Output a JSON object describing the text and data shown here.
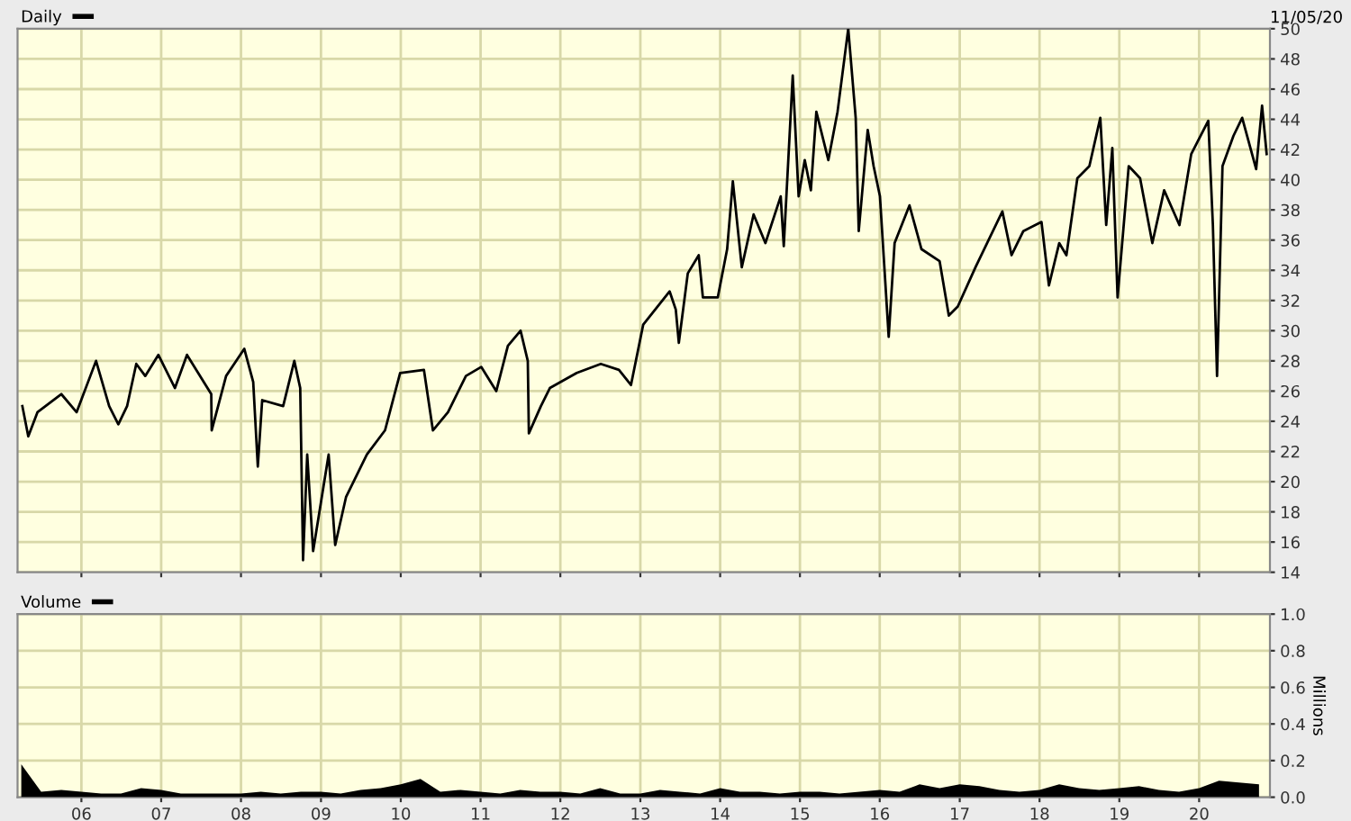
{
  "chart_data": [
    {
      "type": "line",
      "annotations": [
        "11/05/20"
      ],
      "legend": "top left",
      "grid": true,
      "tick_labels": "y",
      "marker": "none",
      "line_style": "solid",
      "xlim": [
        "2005-03-15",
        "2020-11-20"
      ],
      "xticks": [
        {
          "value": "2006",
          "label": null
        },
        {
          "value": "2007",
          "label": null
        },
        {
          "value": "2008",
          "label": null
        },
        {
          "value": "2009",
          "label": null
        },
        {
          "value": "2010",
          "label": null
        },
        {
          "value": "2011",
          "label": null
        },
        {
          "value": "2012",
          "label": null
        },
        {
          "value": "2013",
          "label": null
        },
        {
          "value": "2014",
          "label": null
        },
        {
          "value": "2015",
          "label": null
        },
        {
          "value": "2016",
          "label": null
        },
        {
          "value": "2017",
          "label": null
        },
        {
          "value": "2018",
          "label": null
        },
        {
          "value": "2019",
          "label": null
        },
        {
          "value": "2020",
          "label": null
        }
      ],
      "ylim": [
        14,
        50
      ],
      "yticks": [
        14,
        16,
        18,
        20,
        22,
        24,
        26,
        28,
        30,
        32,
        34,
        36,
        38,
        40,
        42,
        44,
        46,
        48,
        50
      ],
      "series": [
        {
          "name": "Daily",
          "color": "#000000",
          "x": [
            "2005-04-06",
            "2005-05-03",
            "2005-06-14",
            "2005-10-01",
            "2005-12-10",
            "2006-03-09",
            "2006-05-08",
            "2006-06-19",
            "2006-07-29",
            "2006-09-09",
            "2006-10-20",
            "2006-12-19",
            "2007-03-05",
            "2007-04-29",
            "2007-08-18",
            "2007-08-20",
            "2007-10-25",
            "2008-01-16",
            "2008-02-26",
            "2008-03-18",
            "2008-04-07",
            "2008-07-12",
            "2008-09-01",
            "2008-09-28",
            "2008-10-11",
            "2008-10-30",
            "2008-11-26",
            "2009-02-05",
            "2009-03-07",
            "2009-04-26",
            "2009-07-30",
            "2009-10-21",
            "2009-12-29",
            "2010-04-17",
            "2010-05-28",
            "2010-08-05",
            "2010-10-26",
            "2011-01-04",
            "2011-03-14",
            "2011-05-06",
            "2011-07-03",
            "2011-08-05",
            "2011-08-10",
            "2011-10-04",
            "2011-11-14",
            "2012-03-16",
            "2012-07-04",
            "2012-09-25",
            "2012-11-19",
            "2013-01-14",
            "2013-05-15",
            "2013-06-12",
            "2013-06-26",
            "2013-08-06",
            "2013-09-25",
            "2013-10-14",
            "2013-12-21",
            "2014-02-02",
            "2014-02-28",
            "2014-04-10",
            "2014-06-03",
            "2014-07-27",
            "2014-10-05",
            "2014-10-19",
            "2014-11-29",
            "2014-12-26",
            "2015-01-23",
            "2015-02-20",
            "2015-03-17",
            "2015-05-11",
            "2015-06-22",
            "2015-08-10",
            "2015-09-13",
            "2015-09-27",
            "2015-11-07",
            "2015-12-04",
            "2016-01-02",
            "2016-02-11",
            "2016-03-09",
            "2016-05-16",
            "2016-07-10",
            "2016-10-01",
            "2016-11-12",
            "2016-12-23",
            "2017-03-14",
            "2017-07-15",
            "2017-08-26",
            "2017-10-19",
            "2018-01-10",
            "2018-02-13",
            "2018-04-01",
            "2018-05-04",
            "2018-06-23",
            "2018-08-17",
            "2018-10-06",
            "2018-11-02",
            "2018-11-30",
            "2018-12-24",
            "2019-02-13",
            "2019-04-06",
            "2019-06-01",
            "2019-07-25",
            "2019-10-03",
            "2019-11-26",
            "2020-02-12",
            "2020-03-04",
            "2020-03-23",
            "2020-04-17",
            "2020-06-06",
            "2020-07-16",
            "2020-09-18",
            "2020-10-15",
            "2020-11-05"
          ],
          "values": [
            25.0,
            23.0,
            24.6,
            25.8,
            24.6,
            28.0,
            25.0,
            23.8,
            25.0,
            27.8,
            27.0,
            28.4,
            26.2,
            28.4,
            25.8,
            23.4,
            27.0,
            28.8,
            26.6,
            21.0,
            25.4,
            25.0,
            28.0,
            26.2,
            14.8,
            21.8,
            15.4,
            21.8,
            15.8,
            19.0,
            21.8,
            23.4,
            27.2,
            27.4,
            23.4,
            24.6,
            27.0,
            27.6,
            26.0,
            29.0,
            30.0,
            28.0,
            23.2,
            25.0,
            26.2,
            27.2,
            27.8,
            27.4,
            26.4,
            30.4,
            32.6,
            31.4,
            29.2,
            33.8,
            35.0,
            32.2,
            32.2,
            35.4,
            39.9,
            34.2,
            37.7,
            35.8,
            38.9,
            35.6,
            46.9,
            38.9,
            41.3,
            39.3,
            44.5,
            41.3,
            44.5,
            50.0,
            44.1,
            36.6,
            43.3,
            40.9,
            38.9,
            29.6,
            35.8,
            38.3,
            35.4,
            34.6,
            31.0,
            31.6,
            34.2,
            37.9,
            35.0,
            36.6,
            37.2,
            33.0,
            35.8,
            35.0,
            40.1,
            40.9,
            44.1,
            37.0,
            42.1,
            32.2,
            40.9,
            40.1,
            35.8,
            39.3,
            37.0,
            41.7,
            43.9,
            37.0,
            27.0,
            40.9,
            42.9,
            44.1,
            40.7,
            44.9,
            41.7
          ]
        }
      ]
    },
    {
      "type": "area",
      "legend": "top left",
      "grid": true,
      "ylabel": "Millions",
      "xlim": [
        "2005-03-15",
        "2020-11-20"
      ],
      "xticks": [
        {
          "value": "2006",
          "label": "06"
        },
        {
          "value": "2007",
          "label": "07"
        },
        {
          "value": "2008",
          "label": "08"
        },
        {
          "value": "2009",
          "label": "09"
        },
        {
          "value": "2010",
          "label": "10"
        },
        {
          "value": "2011",
          "label": "11"
        },
        {
          "value": "2012",
          "label": "12"
        },
        {
          "value": "2013",
          "label": "13"
        },
        {
          "value": "2014",
          "label": "14"
        },
        {
          "value": "2015",
          "label": "15"
        },
        {
          "value": "2016",
          "label": "16"
        },
        {
          "value": "2017",
          "label": "17"
        },
        {
          "value": "2018",
          "label": "18"
        },
        {
          "value": "2019",
          "label": "19"
        },
        {
          "value": "2020",
          "label": "20"
        }
      ],
      "ylim": [
        0,
        1.0
      ],
      "yticks": [
        {
          "value": 0,
          "label": "0.0"
        },
        {
          "value": 0.2,
          "label": "0.2"
        },
        {
          "value": 0.4,
          "label": "0.4"
        },
        {
          "value": 0.6,
          "label": "0.6"
        },
        {
          "value": 0.8,
          "label": "0.8"
        },
        {
          "value": 1.0,
          "label": "1.0"
        }
      ],
      "series": [
        {
          "name": "Volume",
          "color": "#000000",
          "x": [
            "2005-04",
            "2005-07",
            "2005-10",
            "2006-01",
            "2006-04",
            "2006-07",
            "2006-10",
            "2007-01",
            "2007-04",
            "2007-07",
            "2007-10",
            "2008-01",
            "2008-04",
            "2008-07",
            "2008-10",
            "2009-01",
            "2009-04",
            "2009-07",
            "2009-10",
            "2010-01",
            "2010-04",
            "2010-07",
            "2010-10",
            "2011-01",
            "2011-04",
            "2011-07",
            "2011-10",
            "2012-01",
            "2012-04",
            "2012-07",
            "2012-10",
            "2013-01",
            "2013-04",
            "2013-07",
            "2013-10",
            "2014-01",
            "2014-04",
            "2014-07",
            "2014-10",
            "2015-01",
            "2015-04",
            "2015-07",
            "2015-10",
            "2016-01",
            "2016-04",
            "2016-07",
            "2016-10",
            "2017-01",
            "2017-04",
            "2017-07",
            "2017-10",
            "2018-01",
            "2018-04",
            "2018-07",
            "2018-10",
            "2019-01",
            "2019-04",
            "2019-07",
            "2019-10",
            "2020-01",
            "2020-04",
            "2020-07",
            "2020-10"
          ],
          "values": [
            0.18,
            0.03,
            0.04,
            0.03,
            0.02,
            0.02,
            0.05,
            0.04,
            0.02,
            0.02,
            0.02,
            0.02,
            0.03,
            0.02,
            0.03,
            0.03,
            0.02,
            0.04,
            0.05,
            0.07,
            0.1,
            0.03,
            0.04,
            0.03,
            0.02,
            0.04,
            0.03,
            0.03,
            0.02,
            0.05,
            0.02,
            0.02,
            0.04,
            0.03,
            0.02,
            0.05,
            0.03,
            0.03,
            0.02,
            0.03,
            0.03,
            0.02,
            0.03,
            0.04,
            0.03,
            0.07,
            0.05,
            0.07,
            0.06,
            0.04,
            0.03,
            0.04,
            0.07,
            0.05,
            0.04,
            0.05,
            0.06,
            0.04,
            0.03,
            0.05,
            0.09,
            0.08,
            0.07
          ]
        }
      ]
    }
  ]
}
